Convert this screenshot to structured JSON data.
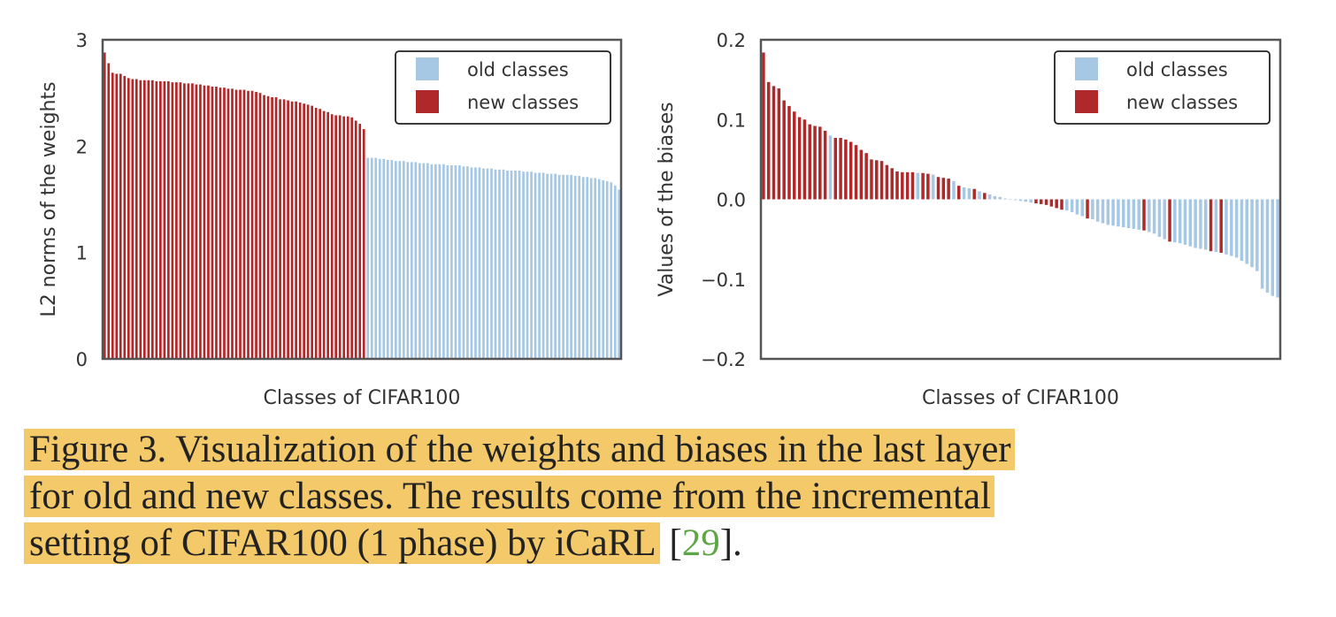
{
  "figure": {
    "caption_lines": [
      "Figure 3. Visualization of the weights and biases in the last layer",
      "for old and new classes.  The results come from the incremental",
      "setting of CIFAR100 (1 phase) by iCaRL"
    ],
    "caption_ref_open": "[",
    "caption_ref_num": "29",
    "caption_ref_close": "].",
    "highlight_color": "#f3c96a",
    "ref_color": "#5da646"
  },
  "colors": {
    "old": "#a6c8e4",
    "new": "#b0292a",
    "axis": "#555555"
  },
  "chart_data": [
    {
      "type": "bar",
      "xlabel": "Classes of CIFAR100",
      "ylabel": "L2 norms of the weights",
      "ylim": [
        0,
        3
      ],
      "yticks": [
        0,
        1,
        2,
        3
      ],
      "ytick_labels": [
        "0",
        "1",
        "2",
        "3"
      ],
      "grid": false,
      "legend": {
        "position": "top-right",
        "entries": [
          "old classes",
          "new classes"
        ]
      },
      "series": [
        {
          "name": "new classes",
          "color": "#b0292a",
          "values": [
            2.88,
            2.78,
            2.69,
            2.68,
            2.68,
            2.66,
            2.64,
            2.63,
            2.63,
            2.62,
            2.62,
            2.62,
            2.62,
            2.61,
            2.61,
            2.61,
            2.61,
            2.6,
            2.6,
            2.6,
            2.59,
            2.59,
            2.59,
            2.58,
            2.58,
            2.57,
            2.57,
            2.56,
            2.56,
            2.55,
            2.55,
            2.54,
            2.54,
            2.53,
            2.53,
            2.53,
            2.52,
            2.52,
            2.51,
            2.5,
            2.48,
            2.47,
            2.46,
            2.46,
            2.44,
            2.44,
            2.43,
            2.42,
            2.42,
            2.41,
            2.4,
            2.39,
            2.38,
            2.36,
            2.35,
            2.33,
            2.32,
            2.3,
            2.29,
            2.29,
            2.28,
            2.28,
            2.27,
            2.24,
            2.21,
            2.16
          ]
        },
        {
          "name": "old classes",
          "color": "#a6c8e4",
          "values": [
            1.89,
            1.89,
            1.89,
            1.88,
            1.88,
            1.87,
            1.87,
            1.86,
            1.86,
            1.86,
            1.85,
            1.85,
            1.85,
            1.84,
            1.84,
            1.84,
            1.83,
            1.83,
            1.83,
            1.83,
            1.82,
            1.82,
            1.82,
            1.82,
            1.81,
            1.81,
            1.8,
            1.8,
            1.8,
            1.79,
            1.79,
            1.79,
            1.78,
            1.78,
            1.78,
            1.77,
            1.77,
            1.77,
            1.77,
            1.76,
            1.76,
            1.76,
            1.75,
            1.75,
            1.75,
            1.74,
            1.74,
            1.74,
            1.73,
            1.73,
            1.73,
            1.73,
            1.72,
            1.72,
            1.71,
            1.71,
            1.7,
            1.7,
            1.69,
            1.68,
            1.67,
            1.66,
            1.63,
            1.59
          ]
        }
      ]
    },
    {
      "type": "bar",
      "xlabel": "Classes of CIFAR100",
      "ylabel": "Values of the biases",
      "ylim": [
        -0.2,
        0.2
      ],
      "yticks": [
        -0.2,
        -0.1,
        0.0,
        0.1,
        0.2
      ],
      "ytick_labels": [
        "−0.2",
        "−0.1",
        "0.0",
        "0.1",
        "0.2"
      ],
      "grid": false,
      "legend": {
        "position": "top-right",
        "entries": [
          "old classes",
          "new classes"
        ]
      },
      "bars": [
        {
          "v": 0.184,
          "c": "new"
        },
        {
          "v": 0.147,
          "c": "new"
        },
        {
          "v": 0.142,
          "c": "new"
        },
        {
          "v": 0.139,
          "c": "new"
        },
        {
          "v": 0.124,
          "c": "new"
        },
        {
          "v": 0.117,
          "c": "new"
        },
        {
          "v": 0.11,
          "c": "new"
        },
        {
          "v": 0.103,
          "c": "new"
        },
        {
          "v": 0.1,
          "c": "new"
        },
        {
          "v": 0.094,
          "c": "new"
        },
        {
          "v": 0.092,
          "c": "new"
        },
        {
          "v": 0.091,
          "c": "new"
        },
        {
          "v": 0.086,
          "c": "new"
        },
        {
          "v": 0.08,
          "c": "old"
        },
        {
          "v": 0.077,
          "c": "new"
        },
        {
          "v": 0.077,
          "c": "new"
        },
        {
          "v": 0.075,
          "c": "new"
        },
        {
          "v": 0.072,
          "c": "new"
        },
        {
          "v": 0.068,
          "c": "new"
        },
        {
          "v": 0.062,
          "c": "new"
        },
        {
          "v": 0.058,
          "c": "new"
        },
        {
          "v": 0.05,
          "c": "new"
        },
        {
          "v": 0.049,
          "c": "new"
        },
        {
          "v": 0.048,
          "c": "new"
        },
        {
          "v": 0.043,
          "c": "new"
        },
        {
          "v": 0.039,
          "c": "new"
        },
        {
          "v": 0.035,
          "c": "new"
        },
        {
          "v": 0.034,
          "c": "new"
        },
        {
          "v": 0.034,
          "c": "new"
        },
        {
          "v": 0.034,
          "c": "new"
        },
        {
          "v": 0.033,
          "c": "old"
        },
        {
          "v": 0.033,
          "c": "new"
        },
        {
          "v": 0.032,
          "c": "new"
        },
        {
          "v": 0.031,
          "c": "old"
        },
        {
          "v": 0.028,
          "c": "new"
        },
        {
          "v": 0.027,
          "c": "new"
        },
        {
          "v": 0.026,
          "c": "new"
        },
        {
          "v": 0.023,
          "c": "old"
        },
        {
          "v": 0.017,
          "c": "new"
        },
        {
          "v": 0.015,
          "c": "old"
        },
        {
          "v": 0.014,
          "c": "old"
        },
        {
          "v": 0.013,
          "c": "new"
        },
        {
          "v": 0.01,
          "c": "old"
        },
        {
          "v": 0.008,
          "c": "new"
        },
        {
          "v": 0.006,
          "c": "old"
        },
        {
          "v": 0.004,
          "c": "old"
        },
        {
          "v": 0.003,
          "c": "old"
        },
        {
          "v": 0.001,
          "c": "old"
        },
        {
          "v": 0.0,
          "c": "old"
        },
        {
          "v": -0.001,
          "c": "old"
        },
        {
          "v": -0.002,
          "c": "old"
        },
        {
          "v": -0.003,
          "c": "old"
        },
        {
          "v": -0.004,
          "c": "old"
        },
        {
          "v": -0.005,
          "c": "new"
        },
        {
          "v": -0.006,
          "c": "new"
        },
        {
          "v": -0.007,
          "c": "new"
        },
        {
          "v": -0.009,
          "c": "new"
        },
        {
          "v": -0.011,
          "c": "new"
        },
        {
          "v": -0.013,
          "c": "new"
        },
        {
          "v": -0.014,
          "c": "old"
        },
        {
          "v": -0.016,
          "c": "old"
        },
        {
          "v": -0.019,
          "c": "old"
        },
        {
          "v": -0.021,
          "c": "old"
        },
        {
          "v": -0.024,
          "c": "new"
        },
        {
          "v": -0.025,
          "c": "old"
        },
        {
          "v": -0.028,
          "c": "old"
        },
        {
          "v": -0.03,
          "c": "old"
        },
        {
          "v": -0.032,
          "c": "old"
        },
        {
          "v": -0.033,
          "c": "old"
        },
        {
          "v": -0.034,
          "c": "old"
        },
        {
          "v": -0.035,
          "c": "old"
        },
        {
          "v": -0.036,
          "c": "old"
        },
        {
          "v": -0.037,
          "c": "old"
        },
        {
          "v": -0.038,
          "c": "old"
        },
        {
          "v": -0.039,
          "c": "new"
        },
        {
          "v": -0.041,
          "c": "old"
        },
        {
          "v": -0.043,
          "c": "old"
        },
        {
          "v": -0.047,
          "c": "old"
        },
        {
          "v": -0.05,
          "c": "old"
        },
        {
          "v": -0.053,
          "c": "new"
        },
        {
          "v": -0.054,
          "c": "old"
        },
        {
          "v": -0.055,
          "c": "old"
        },
        {
          "v": -0.057,
          "c": "old"
        },
        {
          "v": -0.059,
          "c": "old"
        },
        {
          "v": -0.061,
          "c": "old"
        },
        {
          "v": -0.062,
          "c": "old"
        },
        {
          "v": -0.063,
          "c": "old"
        },
        {
          "v": -0.065,
          "c": "new"
        },
        {
          "v": -0.066,
          "c": "old"
        },
        {
          "v": -0.067,
          "c": "new"
        },
        {
          "v": -0.069,
          "c": "old"
        },
        {
          "v": -0.071,
          "c": "old"
        },
        {
          "v": -0.073,
          "c": "old"
        },
        {
          "v": -0.077,
          "c": "old"
        },
        {
          "v": -0.081,
          "c": "old"
        },
        {
          "v": -0.085,
          "c": "old"
        },
        {
          "v": -0.09,
          "c": "old"
        },
        {
          "v": -0.112,
          "c": "old"
        },
        {
          "v": -0.117,
          "c": "old"
        },
        {
          "v": -0.121,
          "c": "old"
        },
        {
          "v": -0.123,
          "c": "old"
        }
      ]
    }
  ]
}
